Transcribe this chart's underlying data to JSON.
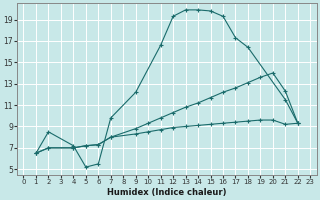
{
  "xlabel": "Humidex (Indice chaleur)",
  "bg_color": "#c8e8e8",
  "grid_color": "#b0d8d8",
  "line_color": "#1a6b6b",
  "xlim": [
    -0.5,
    23.5
  ],
  "ylim": [
    4.5,
    20.5
  ],
  "xticks": [
    0,
    1,
    2,
    3,
    4,
    5,
    6,
    7,
    8,
    9,
    10,
    11,
    12,
    13,
    14,
    15,
    16,
    17,
    18,
    19,
    20,
    21,
    22,
    23
  ],
  "yticks": [
    5,
    7,
    9,
    11,
    13,
    15,
    17,
    19
  ],
  "line1_x": [
    1,
    2,
    4,
    5,
    6,
    7,
    9,
    11,
    12,
    13,
    14,
    15,
    16,
    17,
    18,
    21,
    22
  ],
  "line1_y": [
    6.5,
    8.5,
    7.2,
    5.2,
    5.5,
    9.8,
    12.2,
    16.6,
    19.3,
    19.9,
    19.9,
    19.8,
    19.3,
    17.3,
    16.4,
    11.5,
    9.3
  ],
  "line2_x": [
    1,
    2,
    4,
    5,
    6,
    7,
    9,
    10,
    11,
    12,
    13,
    14,
    15,
    16,
    17,
    18,
    19,
    20,
    21,
    22
  ],
  "line2_y": [
    6.5,
    7.0,
    7.0,
    7.2,
    7.3,
    8.0,
    8.8,
    9.3,
    9.8,
    10.3,
    10.8,
    11.2,
    11.7,
    12.2,
    12.6,
    13.1,
    13.6,
    14.0,
    12.3,
    9.3
  ],
  "line3_x": [
    1,
    2,
    4,
    5,
    6,
    7,
    9,
    10,
    11,
    12,
    13,
    14,
    15,
    16,
    17,
    18,
    19,
    20,
    21,
    22
  ],
  "line3_y": [
    6.5,
    7.0,
    7.0,
    7.2,
    7.3,
    8.0,
    8.3,
    8.5,
    8.7,
    8.9,
    9.0,
    9.1,
    9.2,
    9.3,
    9.4,
    9.5,
    9.6,
    9.6,
    9.2,
    9.3
  ]
}
